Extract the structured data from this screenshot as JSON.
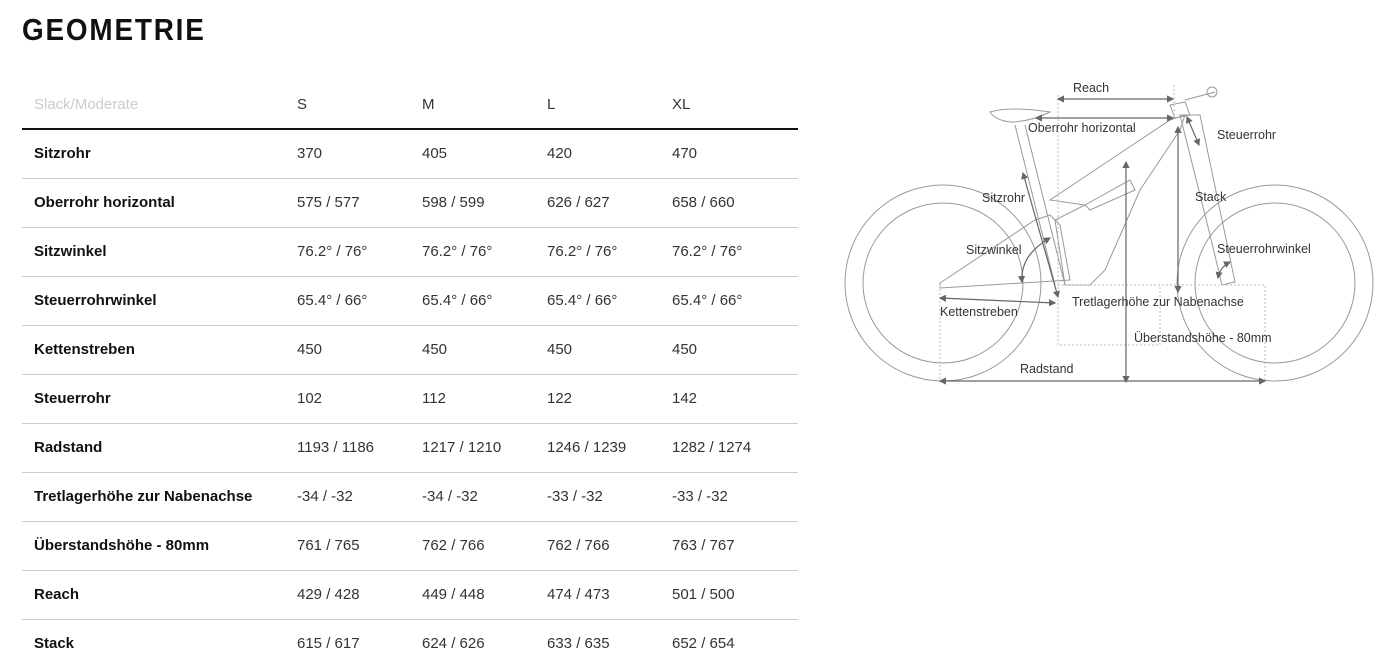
{
  "title": "GEOMETRIE",
  "table": {
    "header": [
      "Slack/Moderate",
      "S",
      "M",
      "L",
      "XL"
    ],
    "rows": [
      {
        "label": "Sitzrohr",
        "values": [
          "370",
          "405",
          "420",
          "470"
        ]
      },
      {
        "label": "Oberrohr horizontal",
        "values": [
          "575 / 577",
          "598 / 599",
          "626 / 627",
          "658 / 660"
        ]
      },
      {
        "label": "Sitzwinkel",
        "values": [
          "76.2° / 76°",
          "76.2° / 76°",
          "76.2° / 76°",
          "76.2° / 76°"
        ]
      },
      {
        "label": "Steuerrohrwinkel",
        "values": [
          "65.4° / 66°",
          "65.4° / 66°",
          "65.4° / 66°",
          "65.4° / 66°"
        ]
      },
      {
        "label": "Kettenstreben",
        "values": [
          "450",
          "450",
          "450",
          "450"
        ]
      },
      {
        "label": "Steuerrohr",
        "values": [
          "102",
          "112",
          "122",
          "142"
        ]
      },
      {
        "label": "Radstand",
        "values": [
          "1193 / 1186",
          "1217 / 1210",
          "1246 / 1239",
          "1282 / 1274"
        ]
      },
      {
        "label": "Tretlagerhöhe zur Nabenachse",
        "values": [
          "-34 / -32",
          "-34 / -32",
          "-33 / -32",
          "-33 / -32"
        ]
      },
      {
        "label": "Überstandshöhe - 80mm",
        "values": [
          "761 / 765",
          "762 / 766",
          "762 / 766",
          "763 / 767"
        ]
      },
      {
        "label": "Reach",
        "values": [
          "429 / 428",
          "449 / 448",
          "474 / 473",
          "501 / 500"
        ]
      },
      {
        "label": "Stack",
        "values": [
          "615 / 617",
          "624 / 626",
          "633 / 635",
          "652 / 654"
        ]
      }
    ]
  },
  "diagram": {
    "labels": {
      "reach": "Reach",
      "oberrohr": "Oberrohr horizontal",
      "steuerrohr": "Steuerrohr",
      "sitzrohr": "Sitzrohr",
      "stack": "Stack",
      "sitzwinkel": "Sitzwinkel",
      "steuerrohrwinkel": "Steuerrohrwinkel",
      "tretlager": "Tretlagerhöhe zur Nabenachse",
      "kettenstreben": "Kettenstreben",
      "ueberstand": "Überstandshöhe - 80mm",
      "radstand": "Radstand"
    }
  }
}
